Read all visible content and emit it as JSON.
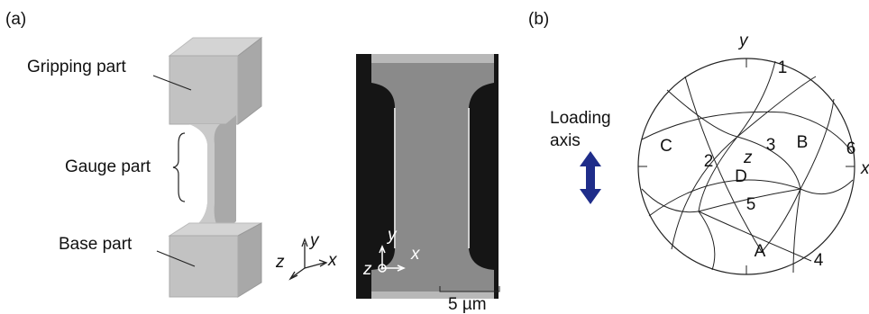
{
  "panel_a": {
    "label": "(a)",
    "schematic": {
      "labels": {
        "gripping": "Gripping part",
        "gauge": "Gauge part",
        "base": "Base part"
      },
      "axes": {
        "z": "z",
        "y": "y",
        "x": "x"
      }
    },
    "sem": {
      "axes": {
        "y": "y",
        "z": "z",
        "x": "x"
      },
      "scale_bar": "5 µm"
    }
  },
  "panel_b": {
    "label": "(b)",
    "loading_axis": [
      "Loading",
      "axis"
    ],
    "projection": {
      "axes": {
        "y": "y",
        "x": "x",
        "z": "z"
      },
      "planes": [
        "1",
        "2",
        "3",
        "4",
        "5",
        "6"
      ],
      "directions": [
        "A",
        "B",
        "C",
        "D"
      ]
    }
  }
}
